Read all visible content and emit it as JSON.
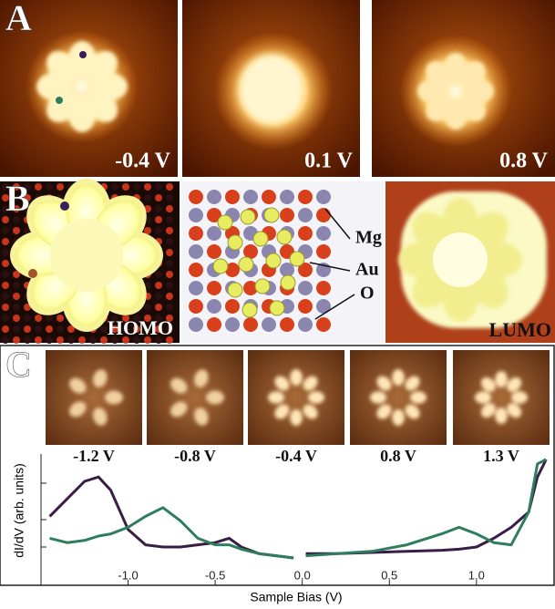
{
  "panel_a": {
    "label": "A",
    "images": [
      "-0.4 V",
      "0.1 V",
      "0.8 V"
    ]
  },
  "panel_b": {
    "label": "B",
    "homo": "HOMO",
    "lumo": "LUMO",
    "legend": [
      "Mg",
      "Au",
      "O"
    ]
  },
  "panel_c": {
    "label": "C",
    "images": [
      "-1.2 V",
      "-0.8 V",
      "-0.4 V",
      "0.8 V",
      "1.3 V"
    ]
  },
  "chart_data": {
    "type": "line",
    "x_label": "Sample Bias (V)",
    "y_label": "dI/dV (arb. units)",
    "x": [
      -1.45,
      -1.35,
      -1.25,
      -1.17,
      -1.1,
      -1.0,
      -0.9,
      -0.8,
      -0.7,
      -0.6,
      -0.5,
      -0.42,
      -0.35,
      -0.25,
      -0.15,
      -0.05,
      0,
      0.02,
      0.2,
      0.4,
      0.6,
      0.8,
      0.9,
      1.0,
      1.1,
      1.2,
      1.3,
      1.35,
      1.4
    ],
    "series": [
      {
        "color": "#3a1d46",
        "values": [
          0.48,
          0.64,
          0.8,
          0.84,
          0.72,
          0.36,
          0.22,
          0.2,
          0.2,
          0.22,
          0.24,
          0.28,
          0.2,
          0.14,
          0.12,
          0.1,
          null,
          0.14,
          0.14,
          0.15,
          0.16,
          0.17,
          0.18,
          0.2,
          0.28,
          0.38,
          0.52,
          0.84,
          1.0
        ]
      },
      {
        "color": "#2e7d5e",
        "values": [
          0.28,
          0.24,
          0.26,
          0.3,
          0.32,
          0.38,
          0.48,
          0.56,
          0.44,
          0.28,
          0.22,
          0.22,
          0.18,
          0.14,
          0.12,
          0.1,
          null,
          0.12,
          0.14,
          0.16,
          0.22,
          0.32,
          0.38,
          0.32,
          0.24,
          0.22,
          0.52,
          0.96,
          1.0
        ]
      }
    ],
    "xlim": [
      -1.5,
      1.43
    ],
    "ylim": [
      -0.15,
      1.05
    ],
    "xticks": [
      {
        "value": -1,
        "label": "-1.0"
      },
      -0.5,
      {
        "value": 0,
        "label": "0.0"
      },
      0.5,
      {
        "value": 1,
        "label": "1.0"
      }
    ]
  }
}
